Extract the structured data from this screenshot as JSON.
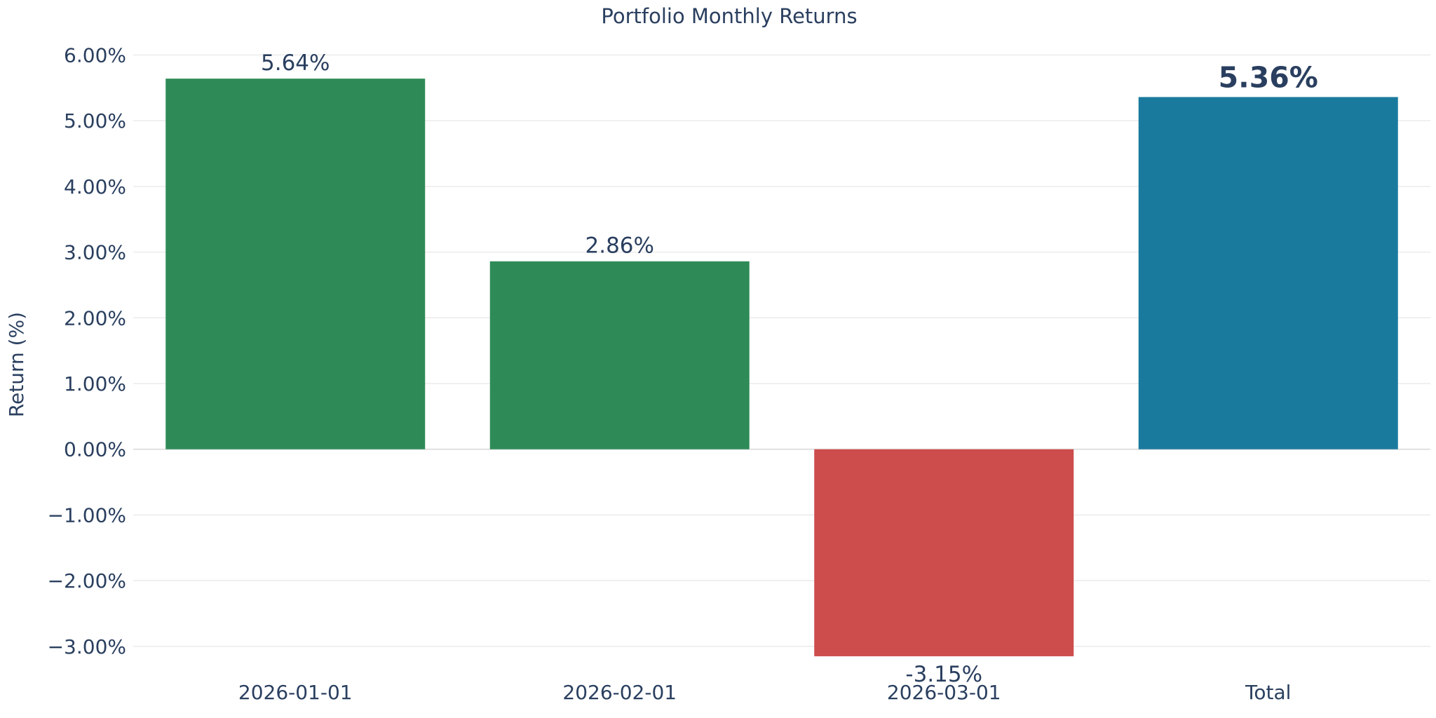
{
  "chart_data": {
    "type": "bar",
    "title": "Portfolio Monthly Returns",
    "xlabel": "",
    "ylabel": "Return (%)",
    "categories": [
      "2026-01-01",
      "2026-02-01",
      "2026-03-01",
      "Total"
    ],
    "values": [
      5.64,
      2.86,
      -3.15,
      5.36
    ],
    "data_labels": [
      "5.64%",
      "2.86%",
      "-3.15%",
      "5.36%"
    ],
    "bar_colors": [
      "#2e8b57",
      "#2e8b57",
      "#cd4c4c",
      "#1a7a9e"
    ],
    "ylim": [
      -3.3,
      6.25
    ],
    "yticks": [
      6,
      5,
      4,
      3,
      2,
      1,
      0,
      -1,
      -2,
      -3
    ],
    "ytick_labels": [
      "6.00%",
      "5.00%",
      "4.00%",
      "3.00%",
      "2.00%",
      "1.00%",
      "0.00%",
      "−1.00%",
      "−2.00%",
      "−3.00%"
    ],
    "grid": true,
    "legend": "none"
  },
  "colors": {
    "text": "#2a3f5f",
    "grid": "#ebebeb",
    "zeroline": "#e0e0e0",
    "positive": "#2e8b57",
    "negative": "#cd4c4c",
    "total": "#1a7a9e"
  }
}
